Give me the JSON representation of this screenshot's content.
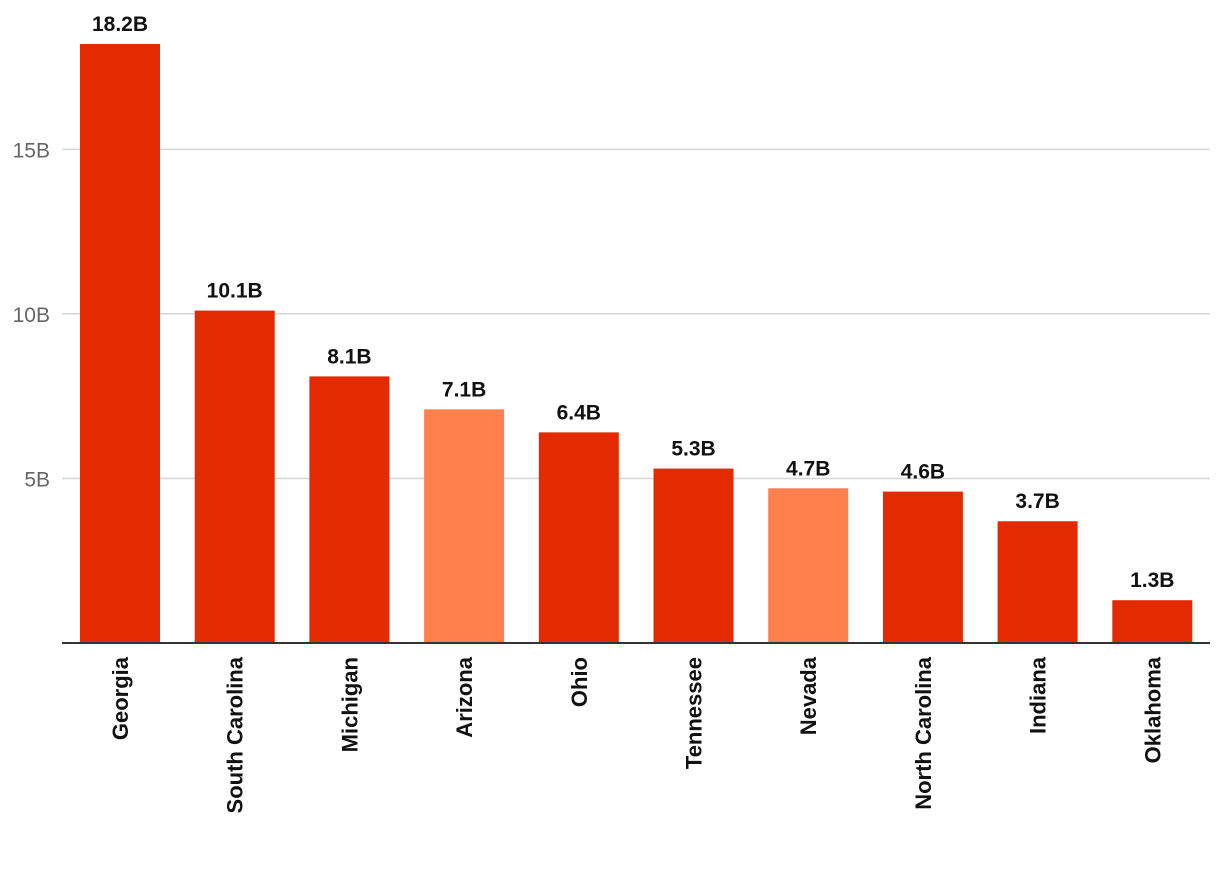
{
  "chart_data": {
    "type": "bar",
    "categories": [
      "Georgia",
      "South Carolina",
      "Michigan",
      "Arizona",
      "Ohio",
      "Tennessee",
      "Nevada",
      "North Carolina",
      "Indiana",
      "Oklahoma"
    ],
    "values": [
      18.2,
      10.1,
      8.1,
      7.1,
      6.4,
      5.3,
      4.7,
      4.6,
      3.7,
      1.3
    ],
    "value_labels": [
      "18.2B",
      "10.1B",
      "8.1B",
      "7.1B",
      "6.4B",
      "5.3B",
      "4.7B",
      "4.6B",
      "3.7B",
      "1.3B"
    ],
    "bar_colors": [
      "#e32a00",
      "#e32a00",
      "#e32a00",
      "#ff7f4d",
      "#e32a00",
      "#e32a00",
      "#ff7f4d",
      "#e32a00",
      "#e32a00",
      "#e32a00"
    ],
    "yticks": [
      5,
      10,
      15
    ],
    "ytick_labels": [
      "5B",
      "10B",
      "15B"
    ],
    "ylim": [
      0,
      18.2
    ],
    "grid": true,
    "legend": "none"
  }
}
